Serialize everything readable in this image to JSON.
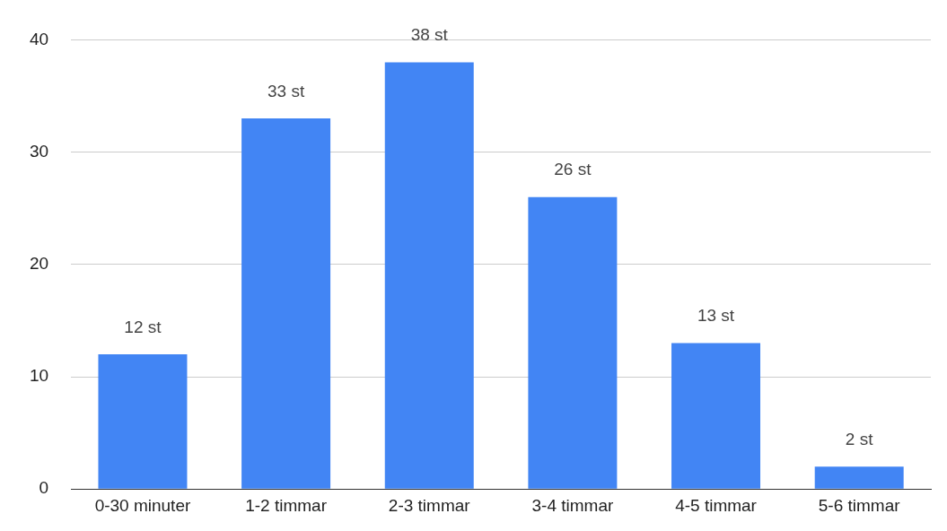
{
  "chart_data": {
    "type": "bar",
    "categories": [
      "0-30 minuter",
      "1-2 timmar",
      "2-3 timmar",
      "3-4 timmar",
      "4-5 timmar",
      "5-6 timmar"
    ],
    "values": [
      12,
      33,
      38,
      26,
      13,
      2
    ],
    "color": "#4285f4",
    "value_labels": [
      "12 st",
      "33 st",
      "38 st",
      "26 st",
      "13 st",
      "2 st"
    ],
    "ylim": [
      0,
      40
    ],
    "yticks": [
      0,
      10,
      20,
      30,
      40
    ],
    "grid": "y",
    "legend": false
  }
}
